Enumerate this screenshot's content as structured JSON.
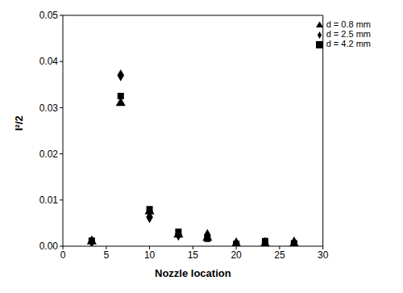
{
  "chart_data": {
    "type": "scatter",
    "x_label": "Nozzle location",
    "y_label": "I²/2",
    "xlim": [
      0,
      30
    ],
    "xticks": [
      0,
      5,
      10,
      15,
      20,
      25,
      30
    ],
    "ylim": [
      0,
      0.05
    ],
    "yticks": [
      {
        "value": 0,
        "label": "0.00"
      },
      {
        "value": 0.01,
        "label": "0.01"
      },
      {
        "value": 0.02,
        "label": "0.02"
      },
      {
        "value": 0.03,
        "label": "0.03"
      },
      {
        "value": 0.04,
        "label": "0.04"
      },
      {
        "value": 0.05,
        "label": "0.05"
      }
    ],
    "legend": "upper right",
    "x": [
      3.33,
      6.67,
      10,
      13.33,
      16.67,
      20,
      23.33,
      26.67
    ],
    "series": [
      {
        "name": "d = 0.8 mm",
        "color": "#000000",
        "marker": "triangle",
        "values": [
          0.001,
          0.031,
          0.0075,
          0.0025,
          0.0018,
          0.0005,
          0.0005,
          0.0005
        ]
      },
      {
        "name": "d = 2.5 mm",
        "color": "#000000",
        "marker": "diamond",
        "values": [
          0.001,
          0.037,
          0.0063,
          0.0025,
          0.0024,
          0.0006,
          0.0007,
          0.0008
        ]
      },
      {
        "name": "d = 4.2 mm",
        "color": "#000000",
        "marker": "square",
        "values": [
          0.0012,
          0.0325,
          0.008,
          0.0031,
          0.0016,
          0.0005,
          0.0011,
          0.0006
        ]
      }
    ]
  }
}
